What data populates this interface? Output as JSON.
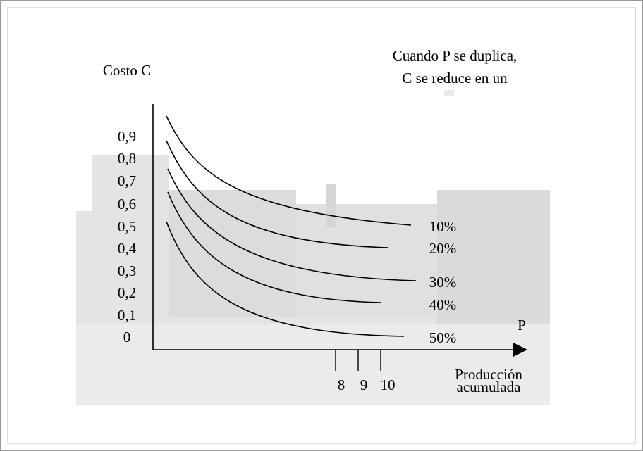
{
  "y_axis": {
    "title": "Costo C",
    "labels": [
      "0,9",
      "0,8",
      "0,7",
      "0,6",
      "0,5",
      "0,4",
      "0,3",
      "0,2",
      "0,1",
      "0"
    ]
  },
  "x_axis": {
    "title": "P",
    "labels": [
      "8",
      "9",
      "10"
    ],
    "caption": [
      "Producción",
      "acumulada"
    ]
  },
  "note": [
    "Cuando P se duplica,",
    "C se reduce en un"
  ],
  "curves": [
    {
      "label": "10%"
    },
    {
      "label": "20%"
    },
    {
      "label": "30%"
    },
    {
      "label": "40%"
    },
    {
      "label": "50%"
    }
  ]
}
